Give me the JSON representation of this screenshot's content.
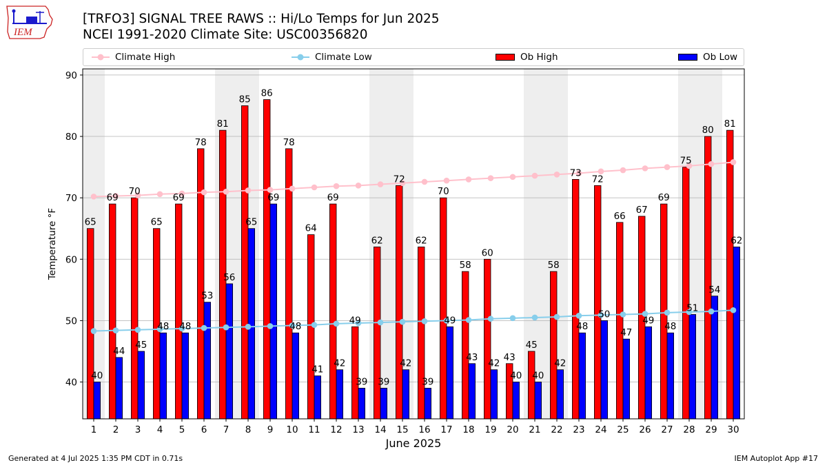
{
  "title": "[TRFO3] SIGNAL TREE RAWS :: Hi/Lo Temps for Jun 2025",
  "subtitle": "NCEI 1991-2020 Climate Site: USC00356820",
  "logo_text": "IEM",
  "footer_left": "Generated at 4 Jul 2025 1:35 PM CDT in 0.71s",
  "footer_right": "IEM Autoplot App #17",
  "legend": {
    "climate_high": "Climate High",
    "climate_low": "Climate Low",
    "ob_high": "Ob High",
    "ob_low": "Ob Low"
  },
  "colors": {
    "ob_high": "#ff0000",
    "ob_low": "#0000ff",
    "climate_high": "#ffc0cb",
    "climate_low": "#87ceeb",
    "weekend_shade": "#eeeeee",
    "grid": "#b0b0b0"
  },
  "chart_data": {
    "type": "bar",
    "xlabel": "June 2025",
    "ylabel": "Temperature °F",
    "ylim": [
      34,
      91
    ],
    "yticks": [
      40,
      50,
      60,
      70,
      80,
      90
    ],
    "grid": "horizontal",
    "legend_position": "top",
    "categories": [
      "1",
      "2",
      "3",
      "4",
      "5",
      "6",
      "7",
      "8",
      "9",
      "10",
      "11",
      "12",
      "13",
      "14",
      "15",
      "16",
      "17",
      "18",
      "19",
      "20",
      "21",
      "22",
      "23",
      "24",
      "25",
      "26",
      "27",
      "28",
      "29",
      "30"
    ],
    "shaded_days": [
      1,
      7,
      8,
      14,
      15,
      21,
      22,
      28,
      29
    ],
    "series": [
      {
        "name": "Ob High",
        "kind": "bar",
        "values": [
          65,
          69,
          70,
          65,
          69,
          78,
          81,
          85,
          86,
          78,
          64,
          69,
          49,
          62,
          72,
          62,
          70,
          58,
          60,
          43,
          45,
          58,
          73,
          72,
          66,
          67,
          69,
          75,
          80,
          81
        ]
      },
      {
        "name": "Ob Low",
        "kind": "bar",
        "values": [
          40,
          44,
          45,
          48,
          48,
          53,
          56,
          65,
          69,
          48,
          41,
          42,
          39,
          39,
          42,
          39,
          49,
          43,
          42,
          40,
          40,
          42,
          48,
          50,
          47,
          49,
          48,
          51,
          54,
          62
        ]
      },
      {
        "name": "Climate High",
        "kind": "line",
        "values": [
          70.2,
          70.3,
          70.4,
          70.6,
          70.7,
          70.9,
          71.0,
          71.2,
          71.3,
          71.5,
          71.7,
          71.9,
          72.0,
          72.2,
          72.4,
          72.6,
          72.8,
          73.0,
          73.2,
          73.4,
          73.6,
          73.8,
          74.0,
          74.3,
          74.5,
          74.8,
          75.0,
          75.2,
          75.5,
          75.8
        ]
      },
      {
        "name": "Climate Low",
        "kind": "line",
        "values": [
          48.3,
          48.4,
          48.5,
          48.6,
          48.7,
          48.8,
          48.9,
          49.0,
          49.1,
          49.2,
          49.3,
          49.5,
          49.6,
          49.7,
          49.8,
          49.9,
          50.0,
          50.1,
          50.3,
          50.4,
          50.5,
          50.6,
          50.8,
          50.9,
          51.0,
          51.1,
          51.3,
          51.4,
          51.5,
          51.7
        ]
      }
    ]
  }
}
